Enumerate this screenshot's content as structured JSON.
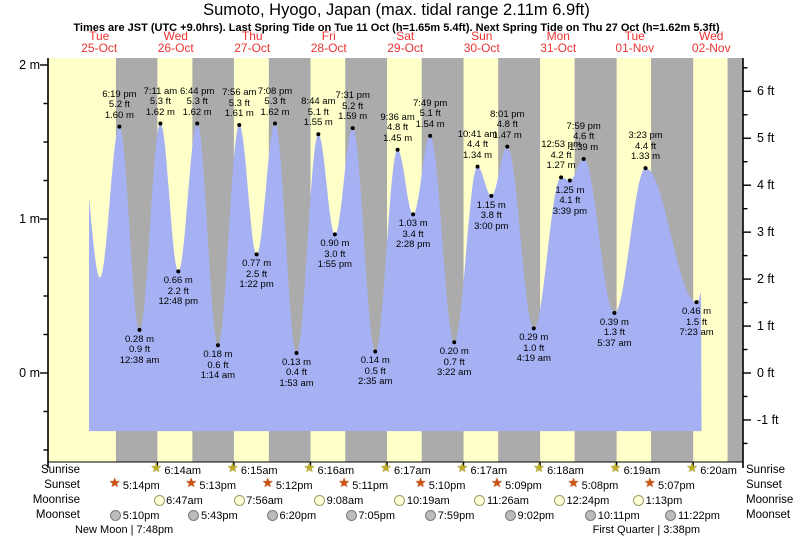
{
  "header": {
    "title": "Sumoto, Hyogo, Japan (max. tidal range 2.11m 6.9ft)",
    "subtitle": "Times are JST (UTC +9.0hrs). Last Spring Tide on Tue 11 Oct (h=1.65m 5.4ft). Next Spring Tide on Thu 27 Oct (h=1.62m 5.3ft)"
  },
  "days": [
    {
      "name": "Tue",
      "date": "25-Oct"
    },
    {
      "name": "Wed",
      "date": "26-Oct"
    },
    {
      "name": "Thu",
      "date": "27-Oct"
    },
    {
      "name": "Fri",
      "date": "28-Oct"
    },
    {
      "name": "Sat",
      "date": "29-Oct"
    },
    {
      "name": "Sun",
      "date": "30-Oct"
    },
    {
      "name": "Mon",
      "date": "31-Oct"
    },
    {
      "name": "Tue",
      "date": "01-Nov"
    },
    {
      "name": "Wed",
      "date": "02-Nov"
    }
  ],
  "y_axis": {
    "left_labels": [
      {
        "text": "2 m",
        "m": 2
      },
      {
        "text": "1 m",
        "m": 1
      },
      {
        "text": "0 m",
        "m": 0
      }
    ],
    "right_labels": [
      {
        "text": "6 ft",
        "ft": 6
      },
      {
        "text": "5 ft",
        "ft": 5
      },
      {
        "text": "4 ft",
        "ft": 4
      },
      {
        "text": "3 ft",
        "ft": 3
      },
      {
        "text": "2 ft",
        "ft": 2
      },
      {
        "text": "1 ft",
        "ft": 1
      },
      {
        "text": "0 ft",
        "ft": 0
      },
      {
        "text": "-1 ft",
        "ft": -1
      }
    ]
  },
  "chart_data": {
    "type": "area",
    "title": "Tide height curve",
    "x_unit": "days from Tue 25-Oct 00:00 JST",
    "ylim_m": [
      -0.59,
      2.05
    ],
    "tide_events": [
      {
        "kind": "high",
        "t": 0.7632,
        "m": 1.6,
        "time": "6:19 pm",
        "ft_label": "5.2 ft",
        "m_label": "1.60 m"
      },
      {
        "kind": "low",
        "t": 1.0264,
        "m": 0.28,
        "time": "12:38 am",
        "ft_label": "0.9 ft",
        "m_label": "0.28 m"
      },
      {
        "kind": "high",
        "t": 1.2993,
        "m": 1.62,
        "time": "7:11 am",
        "ft_label": "5.3 ft",
        "m_label": "1.62 m"
      },
      {
        "kind": "low",
        "t": 1.5333,
        "m": 0.66,
        "time": "12:48 pm",
        "ft_label": "2.2 ft",
        "m_label": "0.66 m"
      },
      {
        "kind": "high",
        "t": 1.7806,
        "m": 1.62,
        "time": "6:44 pm",
        "ft_label": "5.3 ft",
        "m_label": "1.62 m"
      },
      {
        "kind": "low",
        "t": 2.0514,
        "m": 0.18,
        "time": "1:14 am",
        "ft_label": "0.6 ft",
        "m_label": "0.18 m"
      },
      {
        "kind": "high",
        "t": 2.3306,
        "m": 1.61,
        "time": "7:56 am",
        "ft_label": "5.3 ft",
        "m_label": "1.61 m"
      },
      {
        "kind": "low",
        "t": 2.5569,
        "m": 0.77,
        "time": "1:22 pm",
        "ft_label": "2.5 ft",
        "m_label": "0.77 m"
      },
      {
        "kind": "high",
        "t": 2.7972,
        "m": 1.62,
        "time": "7:08 pm",
        "ft_label": "5.3 ft",
        "m_label": "1.62 m"
      },
      {
        "kind": "low",
        "t": 3.0785,
        "m": 0.13,
        "time": "1:53 am",
        "ft_label": "0.4 ft",
        "m_label": "0.13 m"
      },
      {
        "kind": "high",
        "t": 3.3639,
        "m": 1.55,
        "time": "8:44 am",
        "ft_label": "5.1 ft",
        "m_label": "1.55 m"
      },
      {
        "kind": "low",
        "t": 3.5799,
        "m": 0.9,
        "time": "1:55 pm",
        "ft_label": "3.0 ft",
        "m_label": "0.90 m"
      },
      {
        "kind": "high",
        "t": 3.8132,
        "m": 1.59,
        "time": "7:31 pm",
        "ft_label": "5.2 ft",
        "m_label": "1.59 m"
      },
      {
        "kind": "low",
        "t": 4.1076,
        "m": 0.14,
        "time": "2:35 am",
        "ft_label": "0.5 ft",
        "m_label": "0.14 m"
      },
      {
        "kind": "high",
        "t": 4.4,
        "m": 1.45,
        "time": "9:36 am",
        "ft_label": "4.8 ft",
        "m_label": "1.45 m"
      },
      {
        "kind": "low",
        "t": 4.6028,
        "m": 1.03,
        "time": "2:28 pm",
        "ft_label": "3.4 ft",
        "m_label": "1.03 m"
      },
      {
        "kind": "high",
        "t": 4.8257,
        "m": 1.54,
        "time": "7:49 pm",
        "ft_label": "5.1 ft",
        "m_label": "1.54 m"
      },
      {
        "kind": "low",
        "t": 5.1403,
        "m": 0.2,
        "time": "3:22 am",
        "ft_label": "0.7 ft",
        "m_label": "0.20 m"
      },
      {
        "kind": "high",
        "t": 5.4451,
        "m": 1.34,
        "time": "10:41 am",
        "ft_label": "4.4 ft",
        "m_label": "1.34 m"
      },
      {
        "kind": "low",
        "t": 5.625,
        "m": 1.15,
        "time": "3:00 pm",
        "ft_label": "3.8 ft",
        "m_label": "1.15 m"
      },
      {
        "kind": "high",
        "t": 5.834,
        "m": 1.47,
        "time": "8:01 pm",
        "ft_label": "4.8 ft",
        "m_label": "1.47 m"
      },
      {
        "kind": "low",
        "t": 6.1799,
        "m": 0.29,
        "time": "4:19 am",
        "ft_label": "1.0 ft",
        "m_label": "0.29 m"
      },
      {
        "kind": "high",
        "t": 6.5368,
        "m": 1.27,
        "time": "12:53 pm",
        "ft_label": "4.2 ft",
        "m_label": "1.27 m"
      },
      {
        "kind": "low",
        "t": 6.6521,
        "m": 1.25,
        "time": "3:39 pm",
        "ft_label": "4.1 ft",
        "m_label": "1.25 m"
      },
      {
        "kind": "high",
        "t": 6.8326,
        "m": 1.39,
        "time": "7:59 pm",
        "ft_label": "4.6 ft",
        "m_label": "1.39 m"
      },
      {
        "kind": "low",
        "t": 7.234,
        "m": 0.39,
        "time": "5:37 am",
        "ft_label": "1.3 ft",
        "m_label": "0.39 m"
      },
      {
        "kind": "high",
        "t": 7.641,
        "m": 1.33,
        "time": "3:23 pm",
        "ft_label": "4.4 ft",
        "m_label": "1.33 m"
      },
      {
        "kind": "low",
        "t": 8.3076,
        "m": 0.46,
        "time": "7:23 am",
        "ft_label": "1.5 ft",
        "m_label": "0.46 m"
      }
    ],
    "unlabeled_points": [
      {
        "t": 0.27,
        "m": 1.42
      },
      {
        "t": 0.508,
        "m": 0.62
      },
      {
        "t": 8.6,
        "m": 1.2
      }
    ],
    "curve": {
      "start_t": 0.366,
      "end_t": 8.373,
      "fill_bottom_m": -0.377
    },
    "night_bands": [
      [
        0.7181,
        1.2597
      ],
      [
        1.7174,
        2.2604
      ],
      [
        2.7167,
        3.2611
      ],
      [
        3.716,
        4.2618
      ],
      [
        4.7153,
        5.2618
      ],
      [
        5.7146,
        6.2625
      ],
      [
        6.7139,
        7.2632
      ],
      [
        7.7132,
        8.2639
      ],
      [
        8.713,
        8.93
      ]
    ]
  },
  "astro": {
    "row_labels": [
      "Sunrise",
      "Sunset",
      "Moonrise",
      "Moonset"
    ],
    "sunrise": [
      {
        "t": 1.2597,
        "time": "6:14am"
      },
      {
        "t": 2.2604,
        "time": "6:15am"
      },
      {
        "t": 3.2611,
        "time": "6:16am"
      },
      {
        "t": 4.2618,
        "time": "6:17am"
      },
      {
        "t": 5.2618,
        "time": "6:17am"
      },
      {
        "t": 6.2625,
        "time": "6:18am"
      },
      {
        "t": 7.2632,
        "time": "6:19am"
      },
      {
        "t": 8.2639,
        "time": "6:20am"
      }
    ],
    "sunset": [
      {
        "t": 0.7181,
        "time": "5:14pm"
      },
      {
        "t": 1.7174,
        "time": "5:13pm"
      },
      {
        "t": 2.7167,
        "time": "5:12pm"
      },
      {
        "t": 3.716,
        "time": "5:11pm"
      },
      {
        "t": 4.7153,
        "time": "5:10pm"
      },
      {
        "t": 5.7146,
        "time": "5:09pm"
      },
      {
        "t": 6.7139,
        "time": "5:08pm"
      },
      {
        "t": 7.7132,
        "time": "5:07pm"
      }
    ],
    "moonrise": [
      {
        "t": 1.2826,
        "time": "6:47am"
      },
      {
        "t": 2.3306,
        "time": "7:56am"
      },
      {
        "t": 3.3806,
        "time": "9:08am"
      },
      {
        "t": 4.4299,
        "time": "10:19am"
      },
      {
        "t": 5.4764,
        "time": "11:26am"
      },
      {
        "t": 6.5167,
        "time": "12:24pm"
      },
      {
        "t": 7.5507,
        "time": "1:13pm"
      }
    ],
    "moonset": [
      {
        "t": 0.7153,
        "time": "5:10pm"
      },
      {
        "t": 1.7382,
        "time": "5:43pm"
      },
      {
        "t": 2.7639,
        "time": "6:20pm"
      },
      {
        "t": 3.7951,
        "time": "7:05pm"
      },
      {
        "t": 4.8326,
        "time": "7:59pm"
      },
      {
        "t": 5.8764,
        "time": "9:02pm"
      },
      {
        "t": 6.9243,
        "time": "10:11pm"
      },
      {
        "t": 7.9736,
        "time": "11:22pm"
      }
    ],
    "phases": [
      {
        "text": "New Moon | 7:48pm",
        "t": 0.825
      },
      {
        "text": "First Quarter | 3:38pm",
        "t": 7.651
      }
    ]
  },
  "colors": {
    "day_band": "#ffffc9",
    "night_band": "#ababab",
    "tide_fill": "#a5b1f3",
    "day_label": "#ee3333",
    "sunrise_icon": "#bfae2a",
    "sunrise_icon_edge": "#7d7410",
    "sunset_icon": "#cf5210",
    "sunset_icon_edge": "#8b2f00",
    "moonrise_icon": "#ffffd6",
    "moonrise_icon_edge": "#9a9a68",
    "moonset_icon": "#bcbcbc",
    "moonset_icon_edge": "#7a7a7a"
  }
}
